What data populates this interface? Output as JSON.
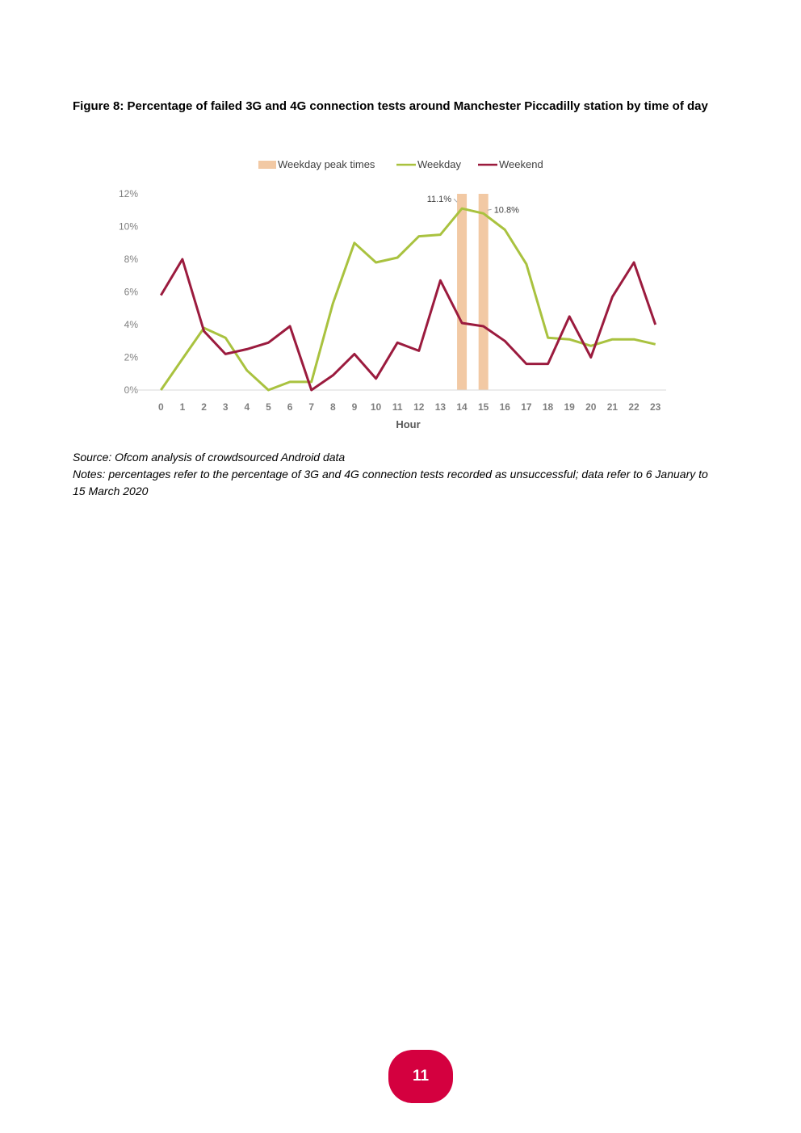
{
  "figure": {
    "title": "Figure 8: Percentage of failed 3G and 4G connection tests around Manchester Piccadilly station by time of day"
  },
  "chart_data": {
    "type": "line",
    "title": "Figure 8: Percentage of failed 3G and 4G connection tests around Manchester Piccadilly station by time of day",
    "xlabel": "Hour",
    "ylabel": "",
    "categories": [
      "0",
      "1",
      "2",
      "3",
      "4",
      "5",
      "6",
      "7",
      "8",
      "9",
      "10",
      "11",
      "12",
      "13",
      "14",
      "15",
      "16",
      "17",
      "18",
      "19",
      "20",
      "21",
      "22",
      "23"
    ],
    "ylim": [
      0,
      12
    ],
    "yticks": [
      0,
      2,
      4,
      6,
      8,
      10,
      12
    ],
    "ytick_labels": [
      "0%",
      "2%",
      "4%",
      "6%",
      "8%",
      "10%",
      "12%"
    ],
    "legend_position": "top",
    "series": [
      {
        "name": "Weekday",
        "color": "#a9c23f",
        "values": [
          0.0,
          1.9,
          3.8,
          3.2,
          1.2,
          0.0,
          0.5,
          0.5,
          5.3,
          9.0,
          7.8,
          8.1,
          9.4,
          9.5,
          11.1,
          10.8,
          9.8,
          7.7,
          3.2,
          3.1,
          2.7,
          3.1,
          3.1,
          2.8
        ]
      },
      {
        "name": "Weekend",
        "color": "#9b1b3e",
        "values": [
          5.8,
          8.0,
          3.6,
          2.2,
          2.5,
          2.9,
          3.9,
          0.0,
          0.9,
          2.2,
          0.7,
          2.9,
          2.4,
          6.7,
          4.1,
          3.9,
          3.0,
          1.6,
          1.6,
          4.5,
          2.0,
          5.7,
          7.8,
          4.0
        ]
      }
    ],
    "highlight": {
      "name": "Weekday peak times",
      "color": "#f2c9a4",
      "hours": [
        14,
        15
      ]
    },
    "data_labels": [
      {
        "series": "Weekday",
        "hour": 14,
        "text": "11.1%"
      },
      {
        "series": "Weekday",
        "hour": 15,
        "text": "10.8%"
      }
    ]
  },
  "notes": {
    "source": "Source: Ofcom analysis of crowdsourced Android data",
    "notes": "Notes: percentages refer to the percentage of 3G and 4G connection tests recorded as unsuccessful; data refer to 6 January to 15 March 2020"
  },
  "page": {
    "number": "11"
  }
}
